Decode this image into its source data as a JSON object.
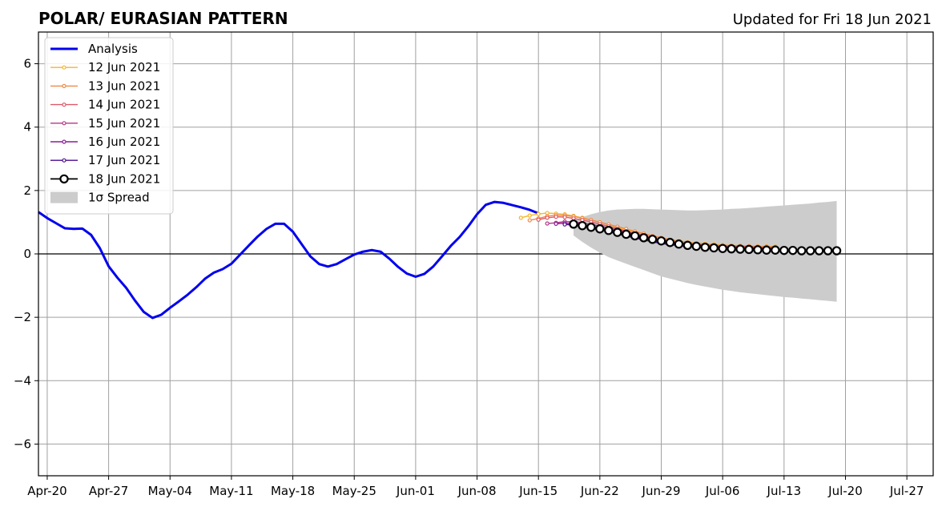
{
  "chart_data": {
    "type": "line",
    "title": "POLAR/ EURASIAN  PATTERN",
    "subtitle": "Updated for Fri 18 Jun 2021",
    "xlabel": "",
    "ylabel": "",
    "xlim": [
      "2021-04-19",
      "2021-07-30"
    ],
    "ylim": [
      -7,
      7
    ],
    "x_ticks": [
      "2021-04-20",
      "2021-04-27",
      "2021-05-04",
      "2021-05-11",
      "2021-05-18",
      "2021-05-25",
      "2021-06-01",
      "2021-06-08",
      "2021-06-15",
      "2021-06-22",
      "2021-06-29",
      "2021-07-06",
      "2021-07-13",
      "2021-07-20",
      "2021-07-27"
    ],
    "x_tick_labels": [
      "Apr-20",
      "Apr-27",
      "May-04",
      "May-11",
      "May-18",
      "May-25",
      "Jun-01",
      "Jun-08",
      "Jun-15",
      "Jun-22",
      "Jun-29",
      "Jul-06",
      "Jul-13",
      "Jul-20",
      "Jul-27"
    ],
    "y_ticks": [
      -6,
      -4,
      -2,
      0,
      2,
      4,
      6
    ],
    "y_tick_labels": [
      "−6",
      "−4",
      "−2",
      "0",
      "2",
      "4",
      "6"
    ],
    "grid": true,
    "legend_position": "top-left",
    "analysis": {
      "name": "Analysis",
      "color": "#0000ee",
      "start_date": "2021-04-19",
      "values": [
        1.32,
        1.13,
        0.97,
        0.81,
        0.79,
        0.8,
        0.6,
        0.18,
        -0.39,
        -0.75,
        -1.07,
        -1.47,
        -1.83,
        -2.02,
        -1.92,
        -1.7,
        -1.5,
        -1.29,
        -1.05,
        -0.78,
        -0.59,
        -0.48,
        -0.31,
        -0.02,
        0.27,
        0.55,
        0.79,
        0.95,
        0.95,
        0.7,
        0.31,
        -0.08,
        -0.32,
        -0.4,
        -0.32,
        -0.17,
        -0.02,
        0.07,
        0.12,
        0.07,
        -0.15,
        -0.41,
        -0.62,
        -0.72,
        -0.63,
        -0.4,
        -0.08,
        0.25,
        0.53,
        0.87,
        1.25,
        1.55,
        1.64,
        1.61,
        1.54,
        1.47,
        1.39,
        1.28
      ]
    },
    "forecasts": [
      {
        "name": "12 Jun 2021",
        "color": "#f5b52f",
        "start_date": "2021-06-13",
        "values": [
          1.14,
          1.21,
          1.26,
          1.29,
          1.27,
          1.25,
          1.2,
          1.14,
          1.07,
          1.0,
          0.92,
          0.84,
          0.76,
          0.69,
          0.62,
          0.56,
          0.5,
          0.45,
          0.41,
          0.37,
          0.34,
          0.32,
          0.3,
          0.28,
          0.27,
          0.26,
          0.25,
          0.24,
          0.24,
          0.23
        ]
      },
      {
        "name": "13 Jun 2021",
        "color": "#ef8a45",
        "start_date": "2021-06-14",
        "values": [
          1.06,
          1.12,
          1.19,
          1.22,
          1.21,
          1.18,
          1.13,
          1.07,
          1.0,
          0.93,
          0.86,
          0.79,
          0.71,
          0.64,
          0.57,
          0.51,
          0.45,
          0.4,
          0.36,
          0.33,
          0.3,
          0.28,
          0.27,
          0.26,
          0.25,
          0.24,
          0.23,
          0.23,
          0.22
        ]
      },
      {
        "name": "14 Jun 2021",
        "color": "#de5a6a",
        "start_date": "2021-06-15",
        "values": [
          1.08,
          1.14,
          1.17,
          1.16,
          1.12,
          1.07,
          1.01,
          0.94,
          0.87,
          0.8,
          0.72,
          0.65,
          0.58,
          0.51,
          0.45,
          0.4,
          0.36,
          0.33,
          0.3,
          0.28,
          0.26,
          0.25,
          0.24,
          0.23,
          0.22,
          0.21,
          0.21,
          0.2
        ]
      },
      {
        "name": "15 Jun 2021",
        "color": "#b4368a",
        "start_date": "2021-06-16",
        "values": [
          0.96,
          0.98,
          1.02,
          1.01,
          0.97,
          0.93,
          0.88,
          0.82,
          0.76,
          0.69,
          0.62,
          0.55,
          0.49,
          0.43,
          0.38,
          0.34,
          0.3,
          0.27,
          0.25,
          0.23,
          0.22,
          0.21,
          0.2,
          0.19,
          0.18,
          0.18,
          0.17
        ]
      },
      {
        "name": "16 Jun 2021",
        "color": "#8a1f99",
        "start_date": "2021-06-17",
        "values": [
          0.95,
          0.97,
          0.95,
          0.91,
          0.86,
          0.8,
          0.74,
          0.67,
          0.6,
          0.53,
          0.47,
          0.41,
          0.36,
          0.32,
          0.28,
          0.25,
          0.23,
          0.21,
          0.19,
          0.18,
          0.17,
          0.16,
          0.15,
          0.15,
          0.14,
          0.14
        ]
      },
      {
        "name": "17 Jun 2021",
        "color": "#4a0a8f",
        "start_date": "2021-06-18",
        "values": [
          0.93,
          0.91,
          0.87,
          0.82,
          0.76,
          0.7,
          0.63,
          0.56,
          0.5,
          0.44,
          0.38,
          0.33,
          0.29,
          0.26,
          0.23,
          0.21,
          0.19,
          0.17,
          0.16,
          0.15,
          0.14,
          0.13,
          0.13,
          0.12,
          0.12
        ]
      }
    ],
    "latest_forecast": {
      "name": "18 Jun 2021",
      "color": "#000000",
      "start_date": "2021-06-19",
      "values": [
        0.94,
        0.89,
        0.84,
        0.79,
        0.74,
        0.68,
        0.62,
        0.57,
        0.51,
        0.46,
        0.41,
        0.36,
        0.31,
        0.27,
        0.24,
        0.21,
        0.19,
        0.17,
        0.16,
        0.15,
        0.14,
        0.13,
        0.12,
        0.12,
        0.11,
        0.11,
        0.1,
        0.1,
        0.1,
        0.1,
        0.1
      ]
    },
    "spread": {
      "name": "1σ Spread",
      "color": "#cccccc",
      "start_date": "2021-06-19",
      "upper": [
        1.05,
        1.16,
        1.25,
        1.32,
        1.37,
        1.4,
        1.41,
        1.42,
        1.42,
        1.41,
        1.4,
        1.39,
        1.38,
        1.37,
        1.37,
        1.38,
        1.39,
        1.4,
        1.42,
        1.43,
        1.45,
        1.47,
        1.49,
        1.51,
        1.53,
        1.55,
        1.57,
        1.59,
        1.62,
        1.64,
        1.67
      ],
      "lower": [
        0.58,
        0.38,
        0.2,
        0.04,
        -0.1,
        -0.21,
        -0.31,
        -0.41,
        -0.51,
        -0.61,
        -0.71,
        -0.78,
        -0.85,
        -0.92,
        -0.98,
        -1.03,
        -1.08,
        -1.13,
        -1.17,
        -1.21,
        -1.24,
        -1.27,
        -1.3,
        -1.33,
        -1.36,
        -1.38,
        -1.41,
        -1.43,
        -1.46,
        -1.48,
        -1.51
      ]
    }
  }
}
